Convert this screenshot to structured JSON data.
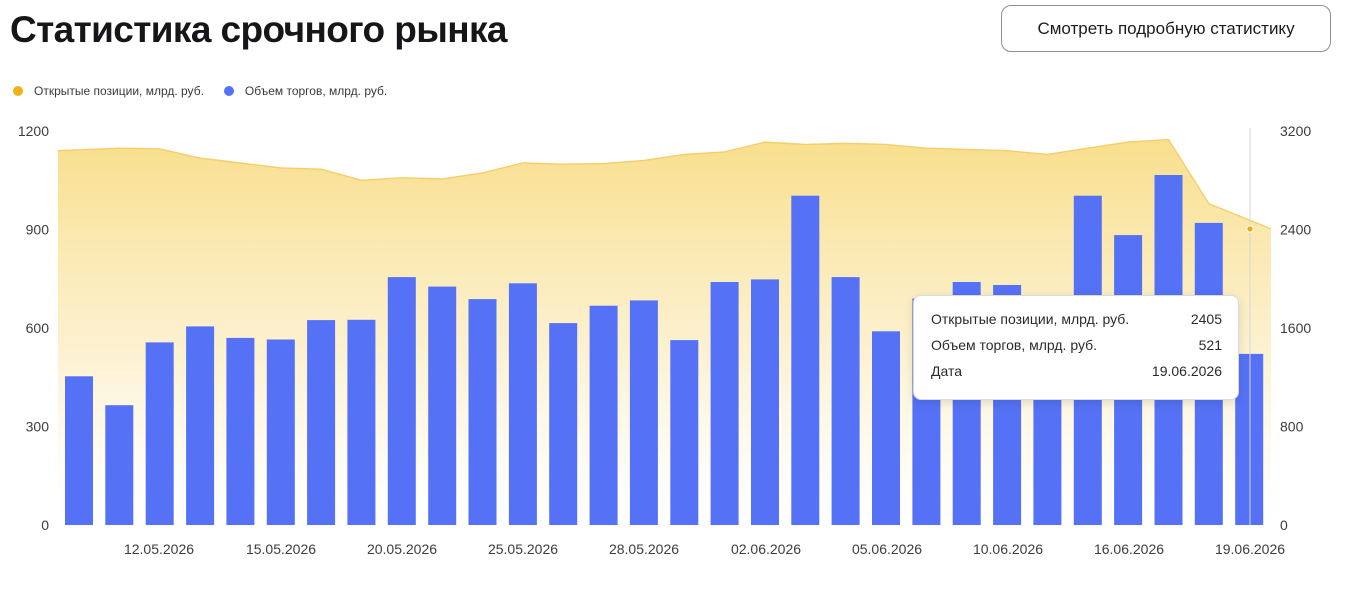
{
  "header": {
    "title": "Статистика срочного рынка",
    "stats_button_label": "Смотреть подробную статистику"
  },
  "legend": [
    {
      "label": "Открытые позиции, млрд. руб.",
      "color": "#f0b215"
    },
    {
      "label": "Объем торгов, млрд. руб.",
      "color": "#5572f6"
    }
  ],
  "tooltip": {
    "rows": [
      {
        "label": "Открытые позиции, млрд. руб.",
        "value": "2405"
      },
      {
        "label": "Объем торгов, млрд. руб.",
        "value": "521"
      },
      {
        "label": "Дата",
        "value": "19.06.2026"
      }
    ]
  },
  "chart_data": {
    "type": "bar",
    "colors": {
      "volume": "#5572f6",
      "open_interest_line": "#f5ce6a",
      "open_interest_fill": "#f7d978",
      "crosshair": "#d6d6d6",
      "marker": "#e6ac1a"
    },
    "x_tick_labels": [
      "12.05.2026",
      "15.05.2026",
      "20.05.2026",
      "25.05.2026",
      "28.05.2026",
      "02.06.2026",
      "05.06.2026",
      "10.06.2026",
      "16.06.2026",
      "19.06.2026"
    ],
    "y_left": {
      "ticks": [
        0,
        300,
        600,
        900,
        1200
      ],
      "range": [
        0,
        1200
      ]
    },
    "y_right": {
      "ticks": [
        0,
        800,
        1600,
        2400,
        3200
      ],
      "range": [
        0,
        3200
      ]
    },
    "grid": false,
    "highlighted_index": 29,
    "series": [
      {
        "name": "Объем торгов, млрд. руб.",
        "axis": "left",
        "type": "bar",
        "values": [
          453,
          365,
          556,
          605,
          570,
          565,
          624,
          625,
          755,
          726,
          688,
          736,
          615,
          668,
          684,
          563,
          740,
          748,
          1003,
          755,
          590,
          690,
          740,
          731,
          640,
          1003,
          883,
          1066,
          920,
          521
        ]
      },
      {
        "name": "Открытые позиции, млрд. руб.",
        "axis": "right",
        "type": "area",
        "values": [
          3040,
          3060,
          3055,
          2980,
          2940,
          2900,
          2890,
          2800,
          2820,
          2810,
          2860,
          2940,
          2930,
          2935,
          2960,
          3010,
          3030,
          3110,
          3090,
          3100,
          3090,
          3060,
          3050,
          3040,
          3010,
          3060,
          3110,
          3130,
          2610,
          2405
        ]
      }
    ]
  }
}
